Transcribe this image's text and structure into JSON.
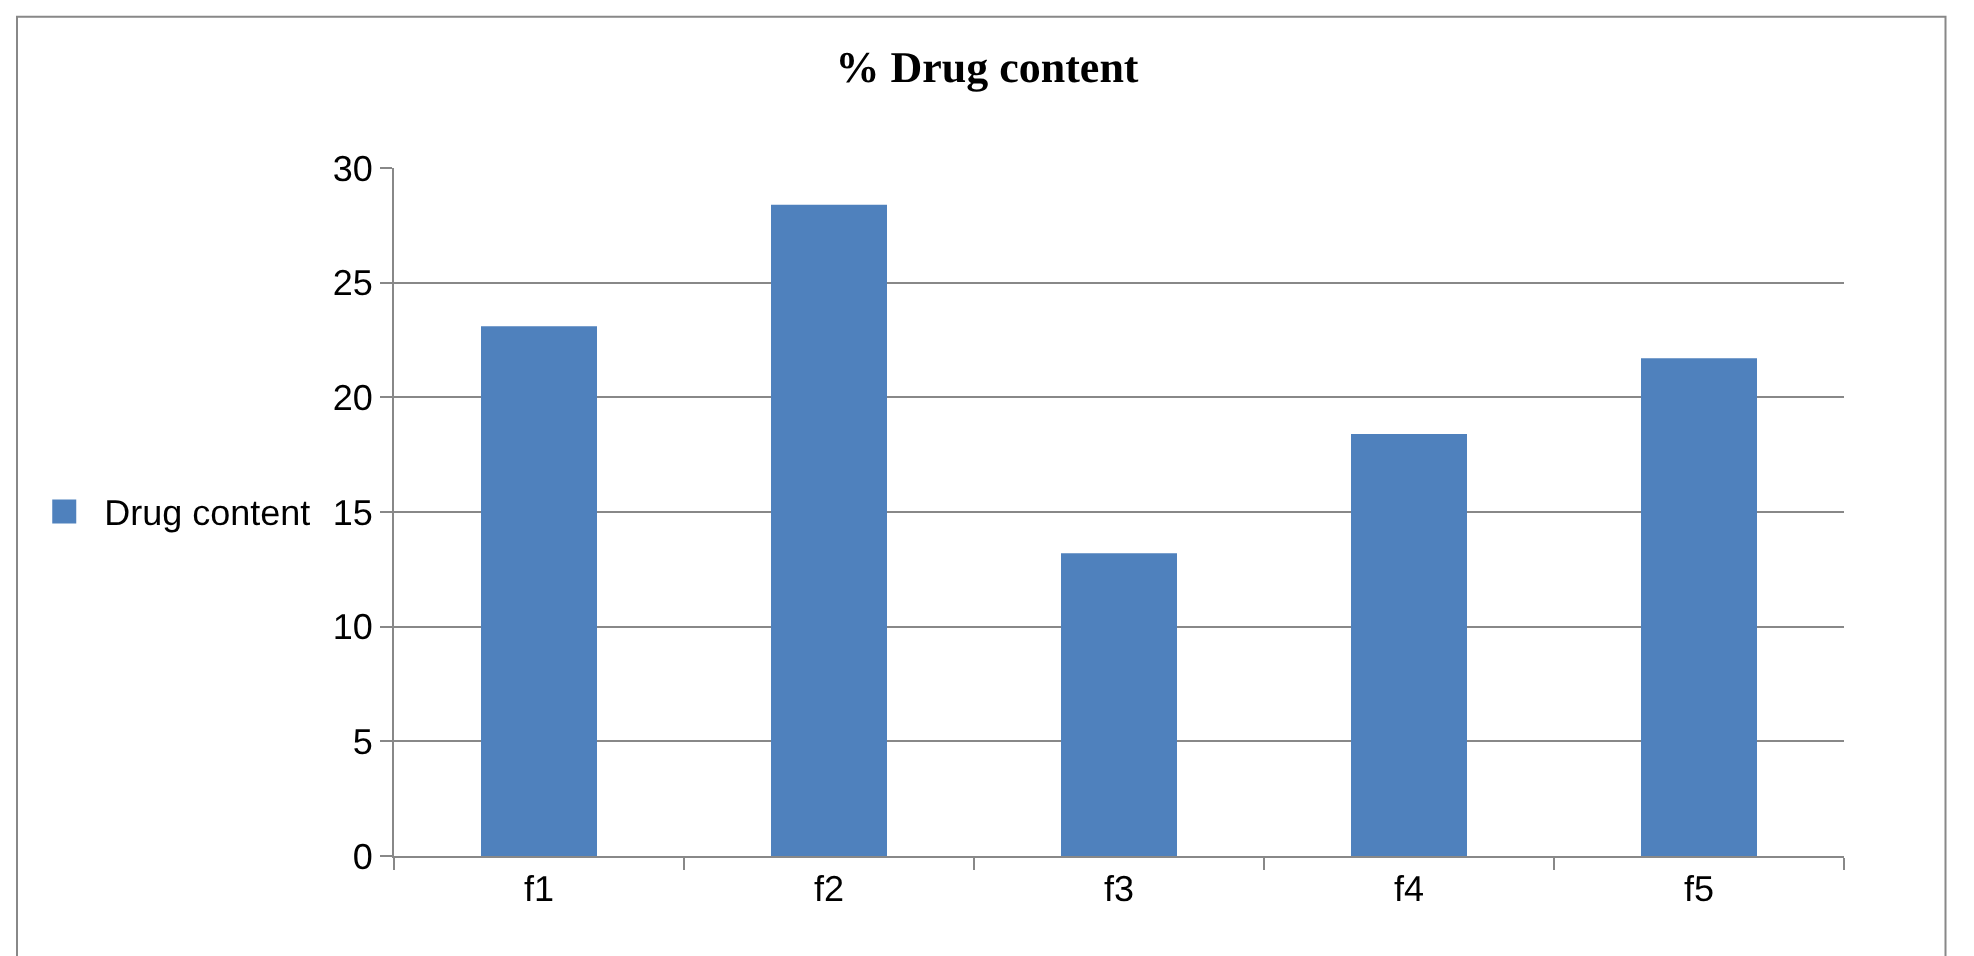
{
  "chart_data": {
    "type": "bar",
    "title": "% Drug content",
    "categories": [
      "f1",
      "f2",
      "f3",
      "f4",
      "f5"
    ],
    "series": [
      {
        "name": "Drug content",
        "color": "#4f81bd",
        "values": [
          23.1,
          28.4,
          13.2,
          18.4,
          21.7
        ]
      }
    ],
    "ylim": [
      0,
      30
    ],
    "yticks": [
      0,
      5,
      10,
      15,
      20,
      25,
      30
    ],
    "grid": "y",
    "legend": "left"
  }
}
